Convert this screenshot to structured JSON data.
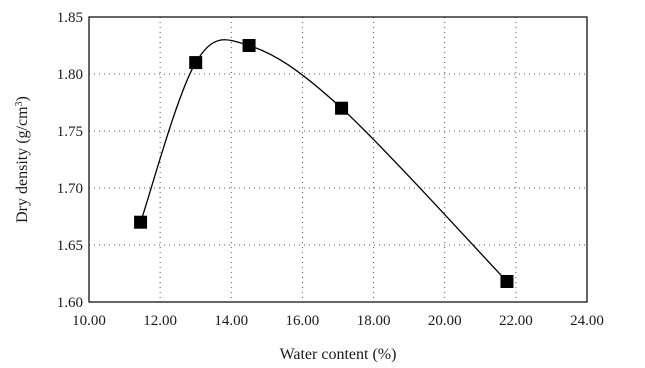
{
  "chart_data": {
    "type": "line",
    "title": "",
    "xlabel": "Water content (%)",
    "ylabel_main": "Dry density (g/cm",
    "ylabel_sup": "3",
    "ylabel_close": ")",
    "xlim": [
      10.0,
      24.0
    ],
    "ylim": [
      1.6,
      1.85
    ],
    "x_ticks": [
      10.0,
      12.0,
      14.0,
      16.0,
      18.0,
      20.0,
      22.0,
      24.0
    ],
    "x_tick_labels": [
      "10.00",
      "12.00",
      "14.00",
      "16.00",
      "18.00",
      "20.00",
      "22.00",
      "24.00"
    ],
    "y_ticks": [
      1.6,
      1.65,
      1.7,
      1.75,
      1.8,
      1.85
    ],
    "y_tick_labels": [
      "1.60",
      "1.65",
      "1.70",
      "1.75",
      "1.80",
      "1.85"
    ],
    "grid": true,
    "curve": "smooth",
    "marker": "square",
    "series": [
      {
        "x": [
          11.45,
          13.0,
          14.5,
          17.1,
          21.75
        ],
        "y": [
          1.67,
          1.81,
          1.825,
          1.77,
          1.618
        ]
      }
    ]
  }
}
